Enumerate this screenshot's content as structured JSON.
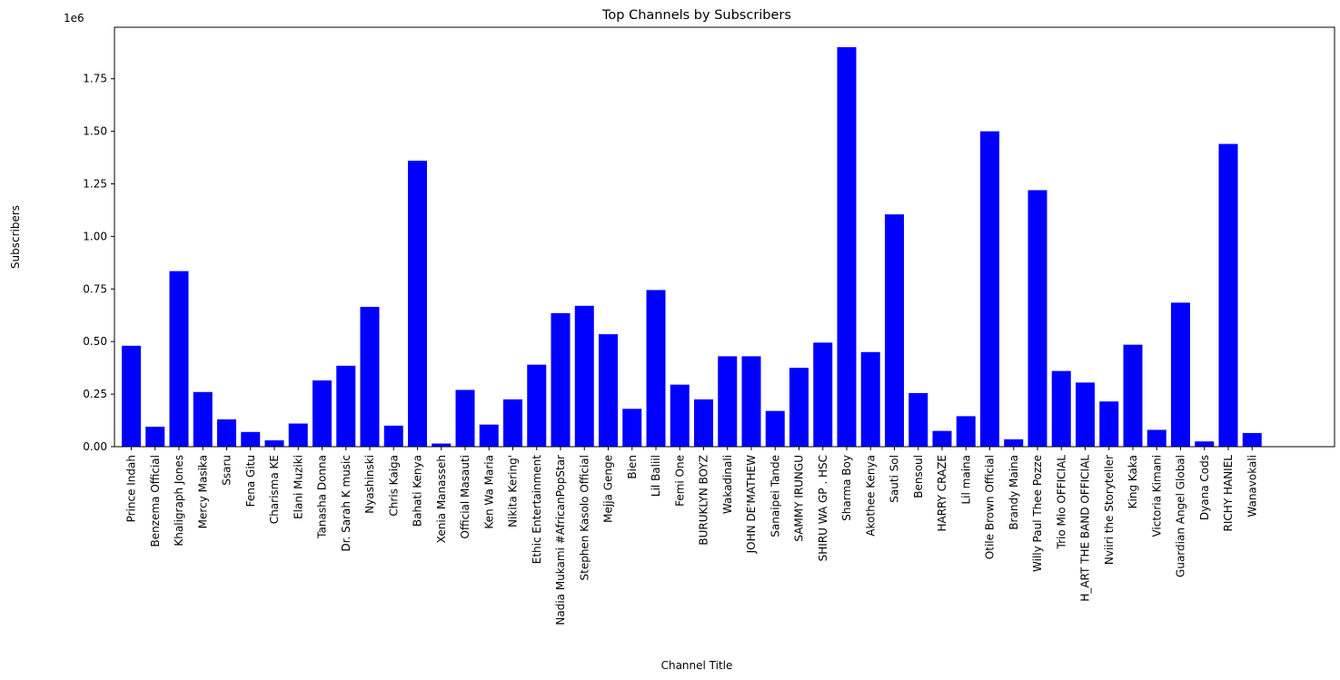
{
  "chart_data": {
    "type": "bar",
    "title": "Top Channels by Subscribers",
    "xlabel": "Channel Title",
    "ylabel": "Subscribers",
    "y_offset_label": "1e6",
    "ylim": [
      0,
      1.995
    ],
    "y_scale": 1000000,
    "yticks": [
      0,
      0.25,
      0.5,
      0.75,
      1.0,
      1.25,
      1.5,
      1.75
    ],
    "ytick_labels": [
      "0.00",
      "0.25",
      "0.50",
      "0.75",
      "1.00",
      "1.25",
      "1.50",
      "1.75"
    ],
    "bar_color": "#0000ff",
    "grid": false,
    "categories": [
      "Prince Indah",
      "Benzema Official",
      "Khaligraph Jones",
      "Mercy Masika",
      "Ssaru",
      "Fena Gitu",
      "Charisma KE",
      "Elani Muziki",
      "Tanasha Donna",
      "Dr. Sarah K music",
      "Nyashinski",
      "Chris Kaiga",
      "Bahati Kenya",
      "Xenia Manasseh",
      "Official Masauti",
      "Ken Wa Maria",
      "Nikita Kering'",
      "Ethic Entertainment",
      "Nadia Mukami #AfricanPopStar",
      "Stephen Kasolo Official",
      "Mejja Genge",
      "Bien",
      "Lil Baliil",
      "Femi One",
      "BURUKLYN BOYZ",
      "Wakadinali",
      "JOHN DE'MATHEW",
      "Sanaipei Tande",
      "SAMMY IRUNGU",
      "SHIRU WA GP . HSC",
      "Sharma Boy",
      "Akothee Kenya",
      "Sauti Sol",
      "Bensoul",
      "HARRY CRAZE",
      "Lil maina",
      "Otile Brown Official",
      "Brandy Maina",
      "Willy Paul Thee Pozze",
      "Trio Mio OFFICIAL",
      "H_ART THE BAND OFFICIAL",
      "Nviiri the Storyteller",
      "King Kaka",
      "Victoria Kimani",
      "Guardian Angel Global",
      "Dyana Cods",
      "RICHY HANIEL",
      "Wanavokali"
    ],
    "values": [
      0.48,
      0.095,
      0.835,
      0.26,
      0.13,
      0.07,
      0.03,
      0.11,
      0.315,
      0.385,
      0.665,
      0.1,
      1.36,
      0.015,
      0.27,
      0.105,
      0.225,
      0.39,
      0.635,
      0.67,
      0.535,
      0.18,
      0.745,
      0.295,
      0.225,
      0.43,
      0.43,
      0.17,
      0.375,
      0.495,
      1.9,
      0.45,
      1.105,
      0.255,
      0.075,
      0.145,
      1.5,
      0.035,
      1.22,
      0.36,
      0.305,
      0.215,
      0.485,
      0.08,
      0.685,
      0.025,
      1.44,
      0.065
    ]
  }
}
